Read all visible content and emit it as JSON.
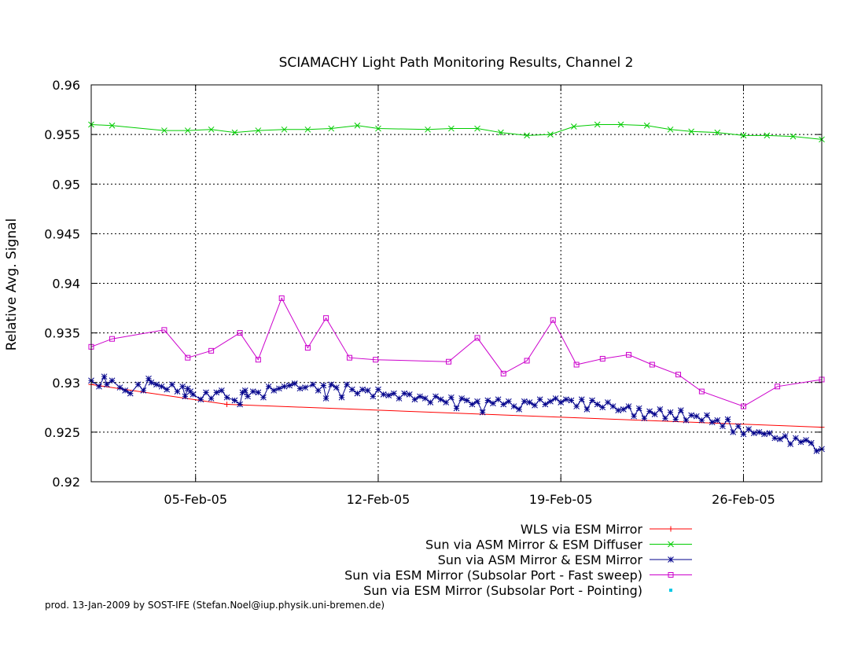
{
  "chart_data": {
    "type": "line",
    "title": "SCIAMACHY Light Path Monitoring Results, Channel 2",
    "xlabel": "",
    "ylabel": "Relative Avg. Signal",
    "x_range": [
      "2005-01-31",
      "2005-03-02"
    ],
    "xlim": [
      0,
      28.0
    ],
    "ylim": [
      0.92,
      0.96
    ],
    "x_ticks": [
      {
        "label": "05-Feb-05",
        "day": 4.0
      },
      {
        "label": "12-Feb-05",
        "day": 11.0
      },
      {
        "label": "19-Feb-05",
        "day": 18.0
      },
      {
        "label": "26-Feb-05",
        "day": 25.0
      }
    ],
    "y_ticks": [
      "0.92",
      "0.925",
      "0.93",
      "0.935",
      "0.94",
      "0.945",
      "0.95",
      "0.955",
      "0.96"
    ],
    "grid": true,
    "legend_position": "bottom-right",
    "series": [
      {
        "name": "WLS via ESM Mirror",
        "color": "#ff0000",
        "marker": "plus",
        "x": [
          0.0,
          5.2,
          28.0
        ],
        "y": [
          0.9298,
          0.9278,
          0.9255
        ]
      },
      {
        "name": "Sun via ASM Mirror & ESM Diffuser",
        "color": "#00cc00",
        "marker": "cross",
        "x": [
          0.0,
          0.8,
          2.8,
          3.7,
          4.6,
          5.5,
          6.4,
          7.4,
          8.3,
          9.2,
          10.2,
          11.0,
          12.9,
          13.8,
          14.8,
          15.7,
          16.7,
          17.6,
          18.5,
          19.4,
          20.3,
          21.3,
          22.2,
          23.0,
          24.0,
          25.0,
          25.9,
          26.9,
          28.0
        ],
        "y": [
          0.956,
          0.9559,
          0.9554,
          0.9554,
          0.9555,
          0.9552,
          0.9554,
          0.9555,
          0.9555,
          0.9556,
          0.9559,
          0.9556,
          0.9555,
          0.9556,
          0.9556,
          0.9552,
          0.9549,
          0.955,
          0.9558,
          0.956,
          0.956,
          0.9559,
          0.9555,
          0.9553,
          0.9552,
          0.9549,
          0.9549,
          0.9548,
          0.9545
        ]
      },
      {
        "name": "Sun via ASM Mirror & ESM Mirror",
        "color": "#00008b",
        "marker": "star",
        "x": [
          0.0,
          0.3,
          0.5,
          0.6,
          0.8,
          1.1,
          1.3,
          1.5,
          1.8,
          2.0,
          2.2,
          2.3,
          2.5,
          2.7,
          2.9,
          3.1,
          3.3,
          3.5,
          3.6,
          3.7,
          3.8,
          3.9,
          4.2,
          4.4,
          4.6,
          4.8,
          5.0,
          5.2,
          5.5,
          5.7,
          5.8,
          5.9,
          6.0,
          6.2,
          6.4,
          6.6,
          6.8,
          7.0,
          7.2,
          7.4,
          7.6,
          7.8,
          8.0,
          8.2,
          8.5,
          8.7,
          8.9,
          9.0,
          9.2,
          9.4,
          9.6,
          9.8,
          10.0,
          10.2,
          10.4,
          10.6,
          10.8,
          11.0,
          11.2,
          11.4,
          11.6,
          11.8,
          12.0,
          12.2,
          12.4,
          12.6,
          12.8,
          13.0,
          13.2,
          13.4,
          13.6,
          13.8,
          14.0,
          14.2,
          14.4,
          14.6,
          14.8,
          15.0,
          15.2,
          15.4,
          15.6,
          15.8,
          16.0,
          16.2,
          16.4,
          16.6,
          16.8,
          17.0,
          17.2,
          17.4,
          17.6,
          17.8,
          18.0,
          18.2,
          18.4,
          18.6,
          18.8,
          19.0,
          19.2,
          19.4,
          19.6,
          19.8,
          20.0,
          20.2,
          20.4,
          20.6,
          20.8,
          21.0,
          21.2,
          21.4,
          21.6,
          21.8,
          22.0,
          22.2,
          22.4,
          22.6,
          22.8,
          23.0,
          23.2,
          23.4,
          23.6,
          23.8,
          24.0,
          24.2,
          24.4,
          24.6,
          24.8,
          25.0,
          25.2,
          25.4,
          25.6,
          25.8,
          26.0,
          26.2,
          26.4,
          26.6,
          26.8,
          27.0,
          27.2,
          27.4,
          27.6,
          27.8,
          28.0
        ],
        "y": [
          0.9302,
          0.9296,
          0.9306,
          0.9298,
          0.9302,
          0.9295,
          0.9292,
          0.9289,
          0.9298,
          0.9292,
          0.9304,
          0.93,
          0.9298,
          0.9296,
          0.9293,
          0.9298,
          0.9291,
          0.9296,
          0.9286,
          0.9294,
          0.9291,
          0.9288,
          0.9283,
          0.929,
          0.9284,
          0.929,
          0.9292,
          0.9285,
          0.9282,
          0.9278,
          0.929,
          0.9292,
          0.9286,
          0.9291,
          0.929,
          0.9285,
          0.9296,
          0.9292,
          0.9294,
          0.9296,
          0.9297,
          0.9299,
          0.9294,
          0.9295,
          0.9298,
          0.9292,
          0.9297,
          0.9284,
          0.9298,
          0.9295,
          0.9285,
          0.9298,
          0.9293,
          0.9289,
          0.9293,
          0.9292,
          0.9286,
          0.9293,
          0.9288,
          0.9287,
          0.9289,
          0.9284,
          0.9289,
          0.9288,
          0.9283,
          0.9286,
          0.9284,
          0.928,
          0.9286,
          0.9283,
          0.928,
          0.9285,
          0.9274,
          0.9284,
          0.9282,
          0.9278,
          0.9281,
          0.927,
          0.9282,
          0.9279,
          0.9283,
          0.9278,
          0.9281,
          0.9276,
          0.9273,
          0.9281,
          0.928,
          0.9277,
          0.9283,
          0.9278,
          0.9281,
          0.9284,
          0.928,
          0.9283,
          0.9282,
          0.9276,
          0.9283,
          0.9273,
          0.9282,
          0.9278,
          0.9275,
          0.928,
          0.9276,
          0.9272,
          0.9273,
          0.9276,
          0.9266,
          0.9274,
          0.9264,
          0.9271,
          0.9268,
          0.9273,
          0.9264,
          0.927,
          0.9263,
          0.9272,
          0.9262,
          0.9267,
          0.9266,
          0.9262,
          0.9267,
          0.926,
          0.9262,
          0.9256,
          0.9263,
          0.925,
          0.9256,
          0.9248,
          0.9253,
          0.9249,
          0.925,
          0.9248,
          0.9249,
          0.9244,
          0.9243,
          0.9246,
          0.9238,
          0.9244,
          0.924,
          0.9242,
          0.9239,
          0.9231,
          0.9233
        ]
      },
      {
        "name": "Sun via ESM Mirror (Subsolar Port - Fast sweep)",
        "color": "#cc00cc",
        "marker": "square",
        "x": [
          0.0,
          0.8,
          2.8,
          3.7,
          4.6,
          5.7,
          6.4,
          7.3,
          8.3,
          9.0,
          9.9,
          10.9,
          13.7,
          14.8,
          15.8,
          16.7,
          17.7,
          18.6,
          19.6,
          20.6,
          21.5,
          22.5,
          23.4,
          25.0,
          26.3,
          28.0
        ],
        "y": [
          0.9336,
          0.9344,
          0.9353,
          0.9325,
          0.9332,
          0.935,
          0.9323,
          0.9385,
          0.9335,
          0.9365,
          0.9325,
          0.9323,
          0.9321,
          0.9345,
          0.9309,
          0.9322,
          0.9363,
          0.9318,
          0.9324,
          0.9328,
          0.9318,
          0.9308,
          0.9291,
          0.9276,
          0.9296,
          0.9303
        ]
      },
      {
        "name": "Sun via ESM Mirror (Subsolar Port - Pointing)",
        "color": "#00c8e6",
        "marker": "dot",
        "x": [],
        "y": []
      }
    ]
  },
  "footer_text": "prod. 13-Jan-2009 by SOST-IFE (Stefan.Noel@iup.physik.uni-bremen.de)"
}
